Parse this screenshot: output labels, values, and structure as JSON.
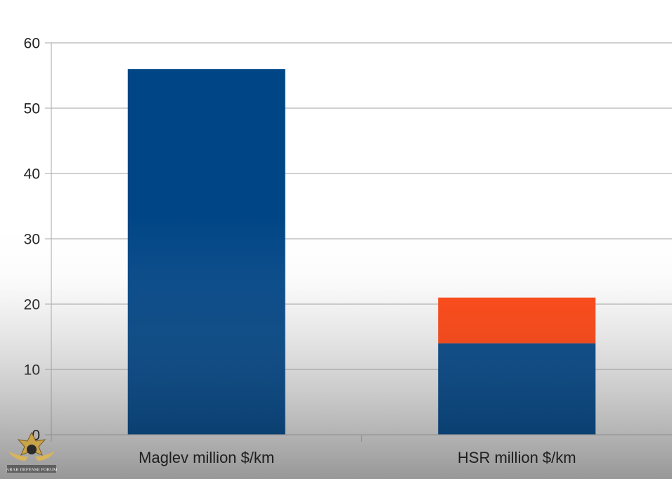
{
  "chart_data": {
    "type": "bar",
    "stacked": true,
    "categories": [
      "Maglev million $/km",
      "HSR million $/km"
    ],
    "series": [
      {
        "values": [
          56,
          14
        ],
        "color": "#004586"
      },
      {
        "values": [
          0,
          7
        ],
        "color": "#ff420e"
      }
    ],
    "ylim": [
      0,
      60
    ],
    "yticks": [
      0,
      10,
      20,
      30,
      40,
      50,
      60
    ],
    "grid": true,
    "legend": "none",
    "title": "",
    "xlabel": "",
    "ylabel": ""
  },
  "watermark": {
    "text": "ARAB DEFENSE FORUM"
  }
}
